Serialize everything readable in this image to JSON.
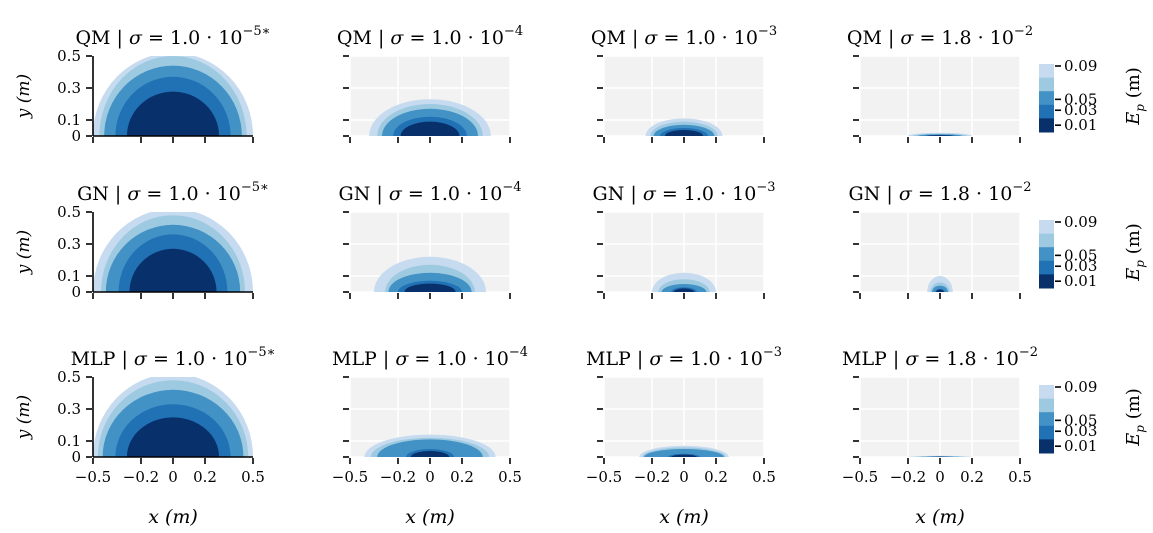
{
  "chart_data": {
    "type": "contour",
    "xlabel": "x (m)",
    "ylabel": "y (m)",
    "colorbar_label": "E_p (m)",
    "x_ticks": [
      -0.5,
      -0.2,
      0,
      0.2,
      0.5
    ],
    "x_tick_labels": [
      "−0.5",
      "−0.2",
      "0",
      "0.2",
      "0.5"
    ],
    "y_ticks": [
      0,
      0.1,
      0.3,
      0.5
    ],
    "y_tick_labels": [
      "0",
      "0.1",
      "0.3",
      "0.5"
    ],
    "xlim": [
      -0.5,
      0.5
    ],
    "ylim": [
      0,
      0.5
    ],
    "colorbar_levels": [
      0.01,
      0.03,
      0.05,
      0.09
    ],
    "colorbar_level_labels": [
      "0.01",
      "0.03",
      "0.05",
      "0.09"
    ],
    "level_colors": [
      "#08306b",
      "#2171b5",
      "#4292c6",
      "#9ecae1",
      "#c6dbef"
    ],
    "background_color": "#f2f2f2",
    "grid": true,
    "rows": [
      {
        "method": "QM",
        "panels": [
          {
            "sigma_mant": "1.0",
            "sigma_exp": "−5∗",
            "radii": [
              [
                0.5,
                0.52
              ],
              [
                0.46,
                0.5
              ],
              [
                0.43,
                0.44
              ],
              [
                0.36,
                0.37
              ]
            ]
          },
          {
            "sigma_mant": "1.0",
            "sigma_exp": "−4",
            "radii": [
              [
                0.38,
                0.23
              ],
              [
                0.33,
                0.2
              ],
              [
                0.3,
                0.17
              ],
              [
                0.23,
                0.12
              ]
            ]
          },
          {
            "sigma_mant": "1.0",
            "sigma_exp": "−3",
            "radii": [
              [
                0.24,
                0.11
              ],
              [
                0.21,
                0.09
              ],
              [
                0.19,
                0.07
              ],
              [
                0.15,
                0.05
              ]
            ]
          },
          {
            "sigma_mant": "1.8",
            "sigma_exp": "−2",
            "radii": [
              [
                0.2,
                0.02
              ],
              [
                0.17,
                0.015
              ],
              [
                0.14,
                0.011
              ],
              [
                0.1,
                0.007
              ]
            ]
          }
        ]
      },
      {
        "method": "GN",
        "panels": [
          {
            "sigma_mant": "1.0",
            "sigma_exp": "−5∗",
            "radii": [
              [
                0.5,
                0.52
              ],
              [
                0.45,
                0.48
              ],
              [
                0.42,
                0.42
              ],
              [
                0.34,
                0.36
              ]
            ]
          },
          {
            "sigma_mant": "1.0",
            "sigma_exp": "−4",
            "radii": [
              [
                0.35,
                0.22
              ],
              [
                0.28,
                0.17
              ],
              [
                0.26,
                0.12
              ],
              [
                0.2,
                0.07
              ]
            ]
          },
          {
            "sigma_mant": "1.0",
            "sigma_exp": "−3",
            "radii": [
              [
                0.2,
                0.12
              ],
              [
                0.16,
                0.08
              ],
              [
                0.14,
                0.05
              ],
              [
                0.08,
                0.03
              ]
            ]
          },
          {
            "sigma_mant": "1.8",
            "sigma_exp": "−2",
            "radii": [
              [
                0.08,
                0.1
              ],
              [
                0.06,
                0.06
              ],
              [
                0.05,
                0.04
              ],
              [
                0.03,
                0.02
              ]
            ]
          }
        ]
      },
      {
        "method": "MLP",
        "panels": [
          {
            "sigma_mant": "1.0",
            "sigma_exp": "−5∗",
            "radii": [
              [
                0.5,
                0.52
              ],
              [
                0.47,
                0.48
              ],
              [
                0.44,
                0.42
              ],
              [
                0.36,
                0.33
              ]
            ]
          },
          {
            "sigma_mant": "1.0",
            "sigma_exp": "−4",
            "radii": [
              [
                0.41,
                0.14
              ],
              [
                0.37,
                0.12
              ],
              [
                0.33,
                0.11
              ],
              [
                0.15,
                0.05
              ]
            ]
          },
          {
            "sigma_mant": "1.0",
            "sigma_exp": "−3",
            "radii": [
              [
                0.28,
                0.07
              ],
              [
                0.26,
                0.06
              ],
              [
                0.25,
                0.05
              ],
              [
                0.1,
                0.02
              ]
            ]
          },
          {
            "sigma_mant": "1.8",
            "sigma_exp": "−2",
            "radii": [
              [
                0.2,
                0.008
              ],
              [
                0.16,
                0.005
              ],
              [
                0.12,
                0.003
              ],
              [
                0.08,
                0.002
              ]
            ]
          }
        ]
      }
    ]
  }
}
